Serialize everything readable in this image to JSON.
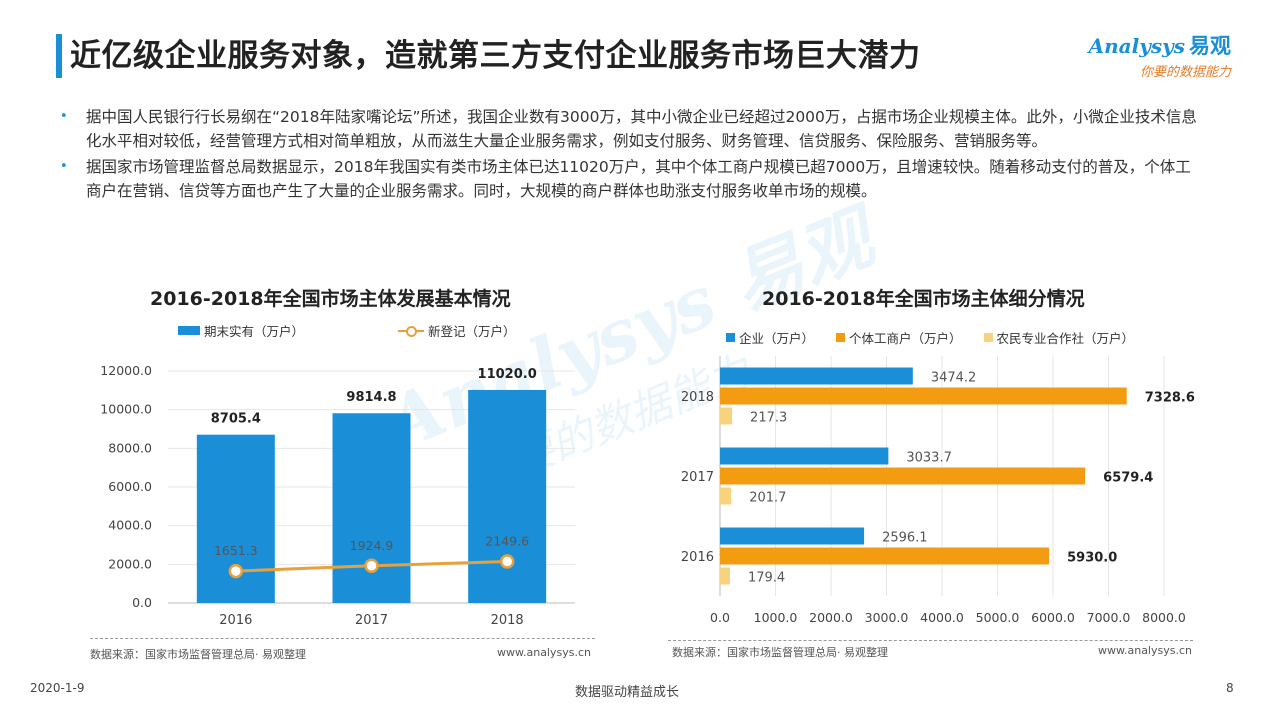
{
  "header": {
    "title": "近亿级企业服务对象，造就第三方支付企业服务市场巨大潜力",
    "logo_text": "nalysys",
    "logo_prefix": "A",
    "logo_cn": "易观",
    "logo_slogan": "你要的数据能力"
  },
  "bullets": [
    "据中国人民银行行长易纲在“2018年陆家嘴论坛”所述，我国企业数有3000万，其中小微企业已经超过2000万，占据市场企业规模主体。此外，小微企业技术信息化水平相对较低，经营管理方式相对简单粗放，从而滋生大量企业服务需求，例如支付服务、财务管理、信贷服务、保险服务、营销服务等。",
    "据国家市场管理监督总局数据显示，2018年我国实有类市场主体已达11020万户，其中个体工商户规模已超7000万，且增速较快。随着移动支付的普及，个体工商户在营销、信贷等方面也产生了大量的企业服务需求。同时，大规模的商户群体也助涨支付服务收单市场的规模。"
  ],
  "colors": {
    "accent": "#1a8fd8",
    "orange": "#f39c12",
    "yellow": "#f7d37d",
    "line": "#e8a13a"
  },
  "chart_data": [
    {
      "type": "bar",
      "title": "2016-2018年全国市场主体发展基本情况",
      "categories": [
        "2016",
        "2017",
        "2018"
      ],
      "series": [
        {
          "name": "期末实有（万户）",
          "kind": "bar",
          "values": [
            8705.4,
            9814.8,
            11020.0
          ],
          "labels": [
            "8705.4",
            "9814.8",
            "11020.0"
          ]
        },
        {
          "name": "新登记（万户）",
          "kind": "line",
          "values": [
            1651.3,
            1924.9,
            2149.6
          ],
          "labels": [
            "1651.3",
            "1924.9",
            "2149.6"
          ]
        }
      ],
      "yticks": [
        "12000.0",
        "10000.0",
        "8000.0",
        "6000.0",
        "4000.0",
        "2000.0",
        "0.0"
      ],
      "ylim": [
        0,
        12000
      ],
      "grid": true,
      "legend": "top",
      "source": "数据来源：国家市场监督管理总局· 易观整理",
      "url": "www.analysys.cn"
    },
    {
      "type": "bar",
      "orientation": "horizontal",
      "title": "2016-2018年全国市场主体细分情况",
      "categories": [
        "2018",
        "2017",
        "2016"
      ],
      "series": [
        {
          "name": "企业（万户）",
          "values": [
            3474.2,
            3033.7,
            2596.1
          ],
          "labels": [
            "3474.2",
            "3033.7",
            "2596.1"
          ]
        },
        {
          "name": "个体工商户（万户）",
          "values": [
            7328.6,
            6579.4,
            5930.0
          ],
          "labels": [
            "7328.6",
            "6579.4",
            "5930.0"
          ]
        },
        {
          "name": "农民专业合作社（万户）",
          "values": [
            217.3,
            201.7,
            179.4
          ],
          "labels": [
            "217.3",
            "201.7",
            "179.4"
          ]
        }
      ],
      "xticks": [
        "0.0",
        "1000.0",
        "2000.0",
        "3000.0",
        "4000.0",
        "5000.0",
        "6000.0",
        "7000.0",
        "8000.0"
      ],
      "xlim": [
        0,
        8000
      ],
      "grid": true,
      "legend": "top",
      "source": "数据来源：国家市场监督管理总局· 易观整理",
      "url": "www.analysys.cn"
    }
  ],
  "footer": {
    "date": "2020-1-9",
    "center": "数据驱动精益成长",
    "page": "8"
  }
}
